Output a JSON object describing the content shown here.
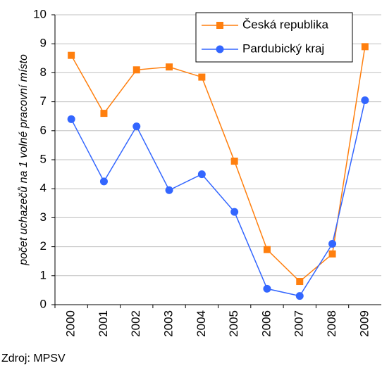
{
  "chart_data": {
    "type": "line",
    "y_label": "počet uchazečů na 1 volné pracovní místo",
    "source": "Zdroj: MPSV",
    "categories": [
      "2000",
      "2001",
      "2002",
      "2003",
      "2004",
      "2005",
      "2006",
      "2007",
      "2008",
      "2009"
    ],
    "series": [
      {
        "name": "Česká republika",
        "color": "#ff7f0e",
        "marker": "square",
        "values": [
          8.6,
          6.6,
          8.1,
          8.2,
          7.85,
          4.95,
          1.9,
          0.8,
          1.75,
          8.9
        ]
      },
      {
        "name": "Pardubický kraj",
        "color": "#3366ff",
        "marker": "circle",
        "values": [
          6.4,
          4.25,
          6.15,
          3.95,
          4.5,
          3.2,
          0.55,
          0.3,
          2.1,
          7.05
        ]
      }
    ],
    "ylim": [
      0,
      10
    ],
    "yticks": [
      0,
      1,
      2,
      3,
      4,
      5,
      6,
      7,
      8,
      9,
      10
    ],
    "grid": true,
    "legend": "upper right"
  }
}
